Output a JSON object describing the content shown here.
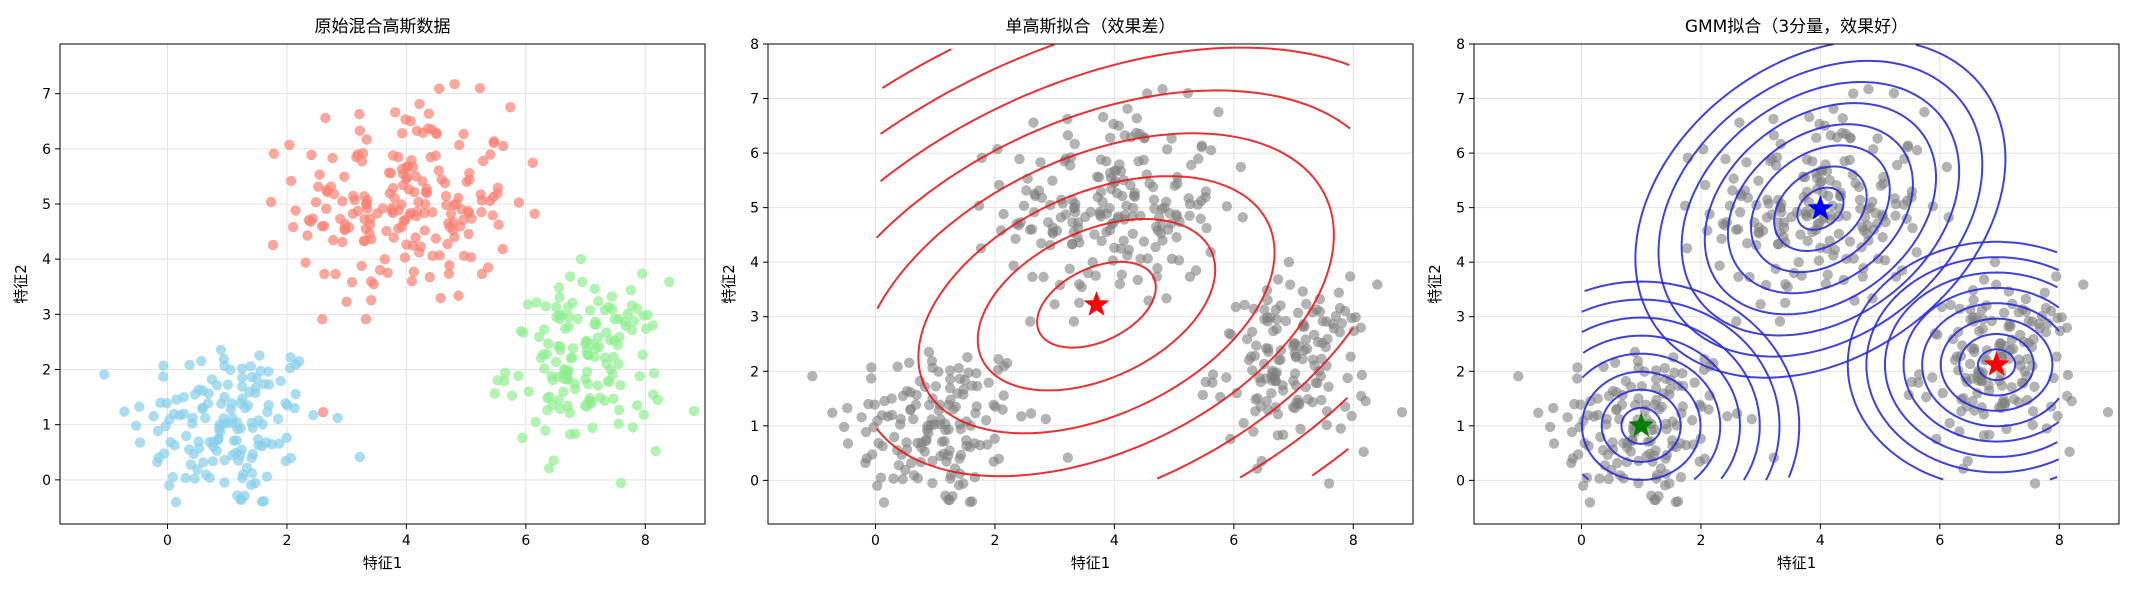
{
  "chart_data": [
    {
      "type": "scatter",
      "title": "原始混合高斯数据",
      "xlabel": "特征1",
      "ylabel": "特征2",
      "xlim": [
        -1.8,
        9.0
      ],
      "ylim": [
        -0.8,
        7.9
      ],
      "xticks": [
        0,
        2,
        4,
        6,
        8
      ],
      "yticks": [
        0,
        1,
        2,
        3,
        4,
        5,
        6,
        7
      ],
      "grid": true,
      "point_alpha": 0.7,
      "series": [
        {
          "color": "#87ceeb",
          "center": [
            1.0,
            1.0
          ],
          "std": [
            0.8,
            0.8
          ],
          "n": 150
        },
        {
          "color": "#fa8072",
          "center": [
            4.0,
            5.0
          ],
          "std": [
            0.9,
            0.9
          ],
          "n": 200
        },
        {
          "color": "#90ee90",
          "center": [
            7.0,
            2.1
          ],
          "std": [
            0.65,
            0.75
          ],
          "n": 150
        }
      ]
    },
    {
      "type": "scatter",
      "title": "单高斯拟合（效果差）",
      "xlabel": "特征1",
      "ylabel": "特征2",
      "xlim": [
        -1.8,
        9.0
      ],
      "ylim": [
        -0.8,
        8.0
      ],
      "xticks": [
        0,
        2,
        4,
        6,
        8
      ],
      "yticks": [
        0,
        1,
        2,
        3,
        4,
        5,
        6,
        7,
        8
      ],
      "grid": true,
      "points_color": "#808080",
      "point_alpha": 0.6,
      "contours": [
        {
          "color": "#e8191c",
          "mean": [
            3.7,
            3.22
          ],
          "cov": [
            [
              5.6,
              1.8
            ],
            [
              1.8,
              3.5
            ]
          ],
          "levels": 8,
          "xrange": [
            0,
            8
          ],
          "yrange": [
            0,
            8
          ]
        }
      ],
      "markers": [
        {
          "x": 3.7,
          "y": 3.22,
          "color": "#ff0000",
          "shape": "star"
        }
      ]
    },
    {
      "type": "scatter",
      "title": "GMM拟合（3分量，效果好）",
      "xlabel": "特征1",
      "ylabel": "特征2",
      "xlim": [
        -1.8,
        9.0
      ],
      "ylim": [
        -0.8,
        8.0
      ],
      "xticks": [
        0,
        2,
        4,
        6,
        8
      ],
      "yticks": [
        0,
        1,
        2,
        3,
        4,
        5,
        6,
        7,
        8
      ],
      "grid": true,
      "points_color": "#808080",
      "point_alpha": 0.6,
      "contours": [
        {
          "color": "#2b2bdb",
          "mean": [
            1.0,
            1.0
          ],
          "cov": [
            [
              0.62,
              0.0
            ],
            [
              0.0,
              0.62
            ]
          ],
          "levels": 8,
          "xrange": [
            0,
            8
          ],
          "yrange": [
            0,
            8
          ]
        },
        {
          "color": "#2b2bdb",
          "mean": [
            4.0,
            4.98
          ],
          "cov": [
            [
              0.85,
              0.25
            ],
            [
              0.25,
              0.85
            ]
          ],
          "levels": 8,
          "xrange": [
            0,
            8
          ],
          "yrange": [
            0,
            8
          ]
        },
        {
          "color": "#2b2bdb",
          "mean": [
            6.95,
            2.12
          ],
          "cov": [
            [
              0.45,
              0.0
            ],
            [
              0.0,
              0.55
            ]
          ],
          "levels": 8,
          "xrange": [
            0,
            8
          ],
          "yrange": [
            0,
            8
          ]
        }
      ],
      "markers": [
        {
          "x": 1.0,
          "y": 1.0,
          "color": "#008000",
          "shape": "star"
        },
        {
          "x": 4.0,
          "y": 4.98,
          "color": "#0000ff",
          "shape": "star"
        },
        {
          "x": 6.95,
          "y": 2.12,
          "color": "#ff0000",
          "shape": "star"
        }
      ]
    }
  ]
}
